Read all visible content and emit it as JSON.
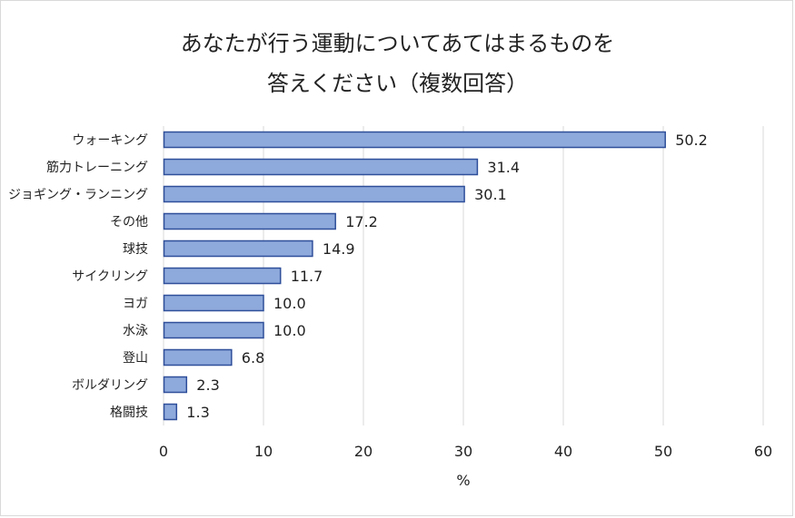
{
  "chart_data": {
    "type": "bar",
    "orientation": "horizontal",
    "title_lines": [
      "あなたが行う運動についてあてはまるものを",
      "答えください（複数回答）"
    ],
    "categories": [
      "ウォーキング",
      "筋力トレーニング",
      "ジョギング・ランニング",
      "その他",
      "球技",
      "サイクリング",
      "ヨガ",
      "水泳",
      "登山",
      "ボルダリング",
      "格闘技"
    ],
    "values": [
      50.2,
      31.4,
      30.1,
      17.2,
      14.9,
      11.7,
      10.0,
      10.0,
      6.8,
      2.3,
      1.3
    ],
    "value_labels": [
      "50.2",
      "31.4",
      "30.1",
      "17.2",
      "14.9",
      "11.7",
      "10.0",
      "10.0",
      "6.8",
      "2.3",
      "1.3"
    ],
    "xlabel": "%",
    "xlim": [
      0,
      60
    ],
    "xticks": [
      0,
      10,
      20,
      30,
      40,
      50,
      60
    ],
    "grid": true,
    "bar_fill": "#8ea9db",
    "bar_stroke": "#2f4f9a",
    "grid_color": "#d9d9d9"
  }
}
